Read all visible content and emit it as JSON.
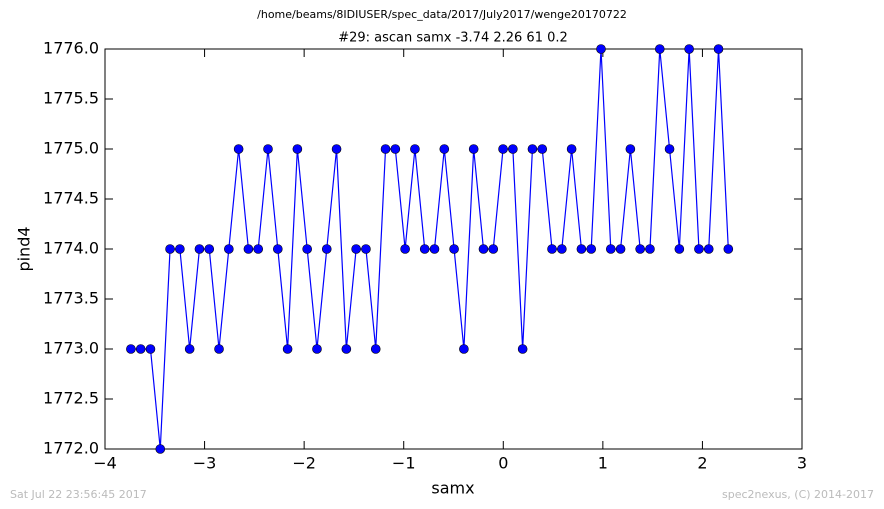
{
  "chart_data": {
    "type": "line",
    "suptitle": "/home/beams/8IDIUSER/spec_data/2017/July2017/wenge20170722",
    "title": "#29: ascan  samx -3.74 2.26  61 0.2",
    "xlabel": "samx",
    "ylabel": "pind4",
    "x": [
      -3.74,
      -3.6416,
      -3.5433,
      -3.4449,
      -3.3466,
      -3.2482,
      -3.1498,
      -3.0515,
      -2.9531,
      -2.8548,
      -2.7564,
      -2.658,
      -2.5597,
      -2.4613,
      -2.363,
      -2.2646,
      -2.1662,
      -2.0679,
      -1.9695,
      -1.8711,
      -1.7728,
      -1.6744,
      -1.5761,
      -1.4777,
      -1.3793,
      -1.281,
      -1.1826,
      -1.0843,
      -0.9859,
      -0.8875,
      -0.7892,
      -0.6908,
      -0.5925,
      -0.4941,
      -0.3957,
      -0.2974,
      -0.199,
      -0.1007,
      -0.0023,
      0.0961,
      0.1944,
      0.2928,
      0.3911,
      0.4895,
      0.5879,
      0.6862,
      0.7846,
      0.883,
      0.9813,
      1.0797,
      1.178,
      1.2764,
      1.3748,
      1.4731,
      1.5715,
      1.6698,
      1.7682,
      1.8666,
      1.9649,
      2.0633,
      2.1616,
      2.26
    ],
    "series": [
      {
        "name": "pind4",
        "color": "#0000ff",
        "values": [
          1773,
          1773,
          1773,
          1772,
          1774,
          1774,
          1773,
          1774,
          1774,
          1773,
          1774,
          1775,
          1774,
          1774,
          1775,
          1774,
          1773,
          1775,
          1774,
          1773,
          1774,
          1775,
          1773,
          1774,
          1774,
          1773,
          1775,
          1775,
          1774,
          1775,
          1774,
          1774,
          1775,
          1774,
          1773,
          1775,
          1774,
          1774,
          1775,
          1775,
          1773,
          1775,
          1775,
          1774,
          1774,
          1775,
          1774,
          1774,
          1776,
          1774,
          1774,
          1775,
          1774,
          1774,
          1776,
          1775,
          1774,
          1776,
          1774,
          1774,
          1776,
          1774
        ]
      }
    ],
    "xlim": [
      -4,
      3
    ],
    "xticks": [
      {
        "value": -4,
        "label": "−4"
      },
      {
        "value": -3,
        "label": "−3"
      },
      {
        "value": -2,
        "label": "−2"
      },
      {
        "value": -1,
        "label": "−1"
      },
      0,
      1,
      2,
      3
    ],
    "ylim": [
      1772,
      1776
    ],
    "yticks": [
      {
        "value": 1772,
        "label": "1772.0"
      },
      {
        "value": 1772.5,
        "label": "1772.5"
      },
      {
        "value": 1773,
        "label": "1773.0"
      },
      {
        "value": 1773.5,
        "label": "1773.5"
      },
      {
        "value": 1774,
        "label": "1774.0"
      },
      {
        "value": 1774.5,
        "label": "1774.5"
      },
      {
        "value": 1775,
        "label": "1775.0"
      },
      {
        "value": 1775.5,
        "label": "1775.5"
      },
      {
        "value": 1776,
        "label": "1776.0"
      }
    ],
    "grid": false,
    "markers": true
  },
  "footer": {
    "left": "Sat Jul 22 23:56:45 2017",
    "right": "spec2nexus, (C) 2014-2017"
  }
}
